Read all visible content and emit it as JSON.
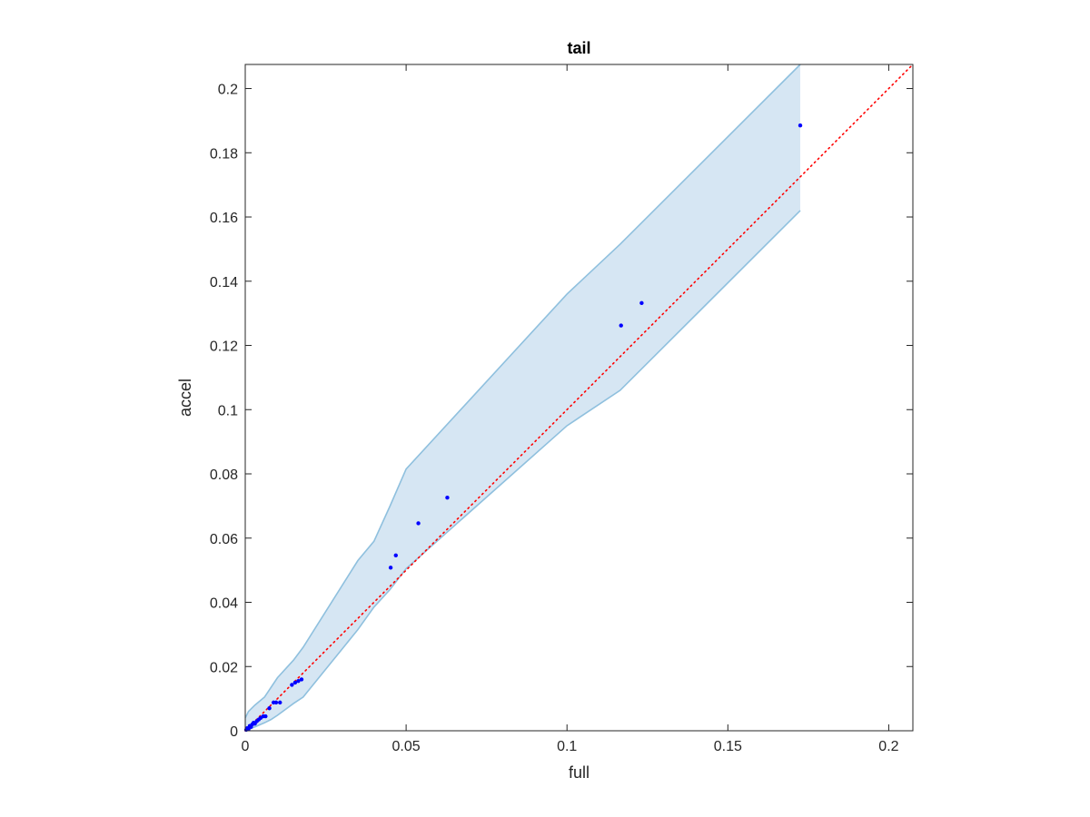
{
  "chart_data": {
    "type": "scatter",
    "title": "tail",
    "xlabel": "full",
    "ylabel": "accel",
    "xlim": [
      0,
      0.2075
    ],
    "ylim": [
      0,
      0.2075
    ],
    "xticks": [
      0,
      0.05,
      0.1,
      0.15,
      0.2
    ],
    "xtick_labels": [
      "0",
      "0.05",
      "0.1",
      "0.15",
      "0.2"
    ],
    "yticks": [
      0,
      0.02,
      0.04,
      0.06,
      0.08,
      0.1,
      0.12,
      0.14,
      0.16,
      0.18,
      0.2
    ],
    "ytick_labels": [
      "0",
      "0.02",
      "0.04",
      "0.06",
      "0.08",
      "0.1",
      "0.12",
      "0.14",
      "0.16",
      "0.18",
      "0.2"
    ],
    "grid": false,
    "series": [
      {
        "kind": "points",
        "color": "#0000ff",
        "x": [
          0.0003,
          0.0006,
          0.001,
          0.0014,
          0.0018,
          0.0022,
          0.0026,
          0.003,
          0.0036,
          0.0042,
          0.0048,
          0.0056,
          0.0063,
          0.0075,
          0.0088,
          0.0096,
          0.0108,
          0.0145,
          0.0155,
          0.0165,
          0.0175,
          0.0452,
          0.0468,
          0.0538,
          0.0628,
          0.1168,
          0.1232,
          0.1725
        ],
        "y": [
          0.0003,
          0.0008,
          0.0005,
          0.0015,
          0.0012,
          0.002,
          0.0025,
          0.0022,
          0.003,
          0.0035,
          0.004,
          0.0045,
          0.0045,
          0.007,
          0.0088,
          0.0088,
          0.0088,
          0.0143,
          0.015,
          0.0155,
          0.016,
          0.0508,
          0.0546,
          0.0646,
          0.0726,
          0.1262,
          0.1332,
          0.1885
        ]
      },
      {
        "kind": "reference-line",
        "style": "dotted",
        "color": "#ff0000",
        "x": [
          0,
          0.2075
        ],
        "y": [
          0,
          0.2075
        ]
      },
      {
        "kind": "band",
        "fill_color": "#d6e6f3",
        "edge_color": "#8fc0de",
        "x": [
          0,
          0.001,
          0.003,
          0.006,
          0.008,
          0.01,
          0.015,
          0.018,
          0.035,
          0.04,
          0.045,
          0.05,
          0.1,
          0.1165,
          0.1725
        ],
        "upper": [
          0.004,
          0.006,
          0.008,
          0.0105,
          0.0135,
          0.0165,
          0.022,
          0.026,
          0.053,
          0.059,
          0.07,
          0.0815,
          0.136,
          0.1515,
          0.2075
        ],
        "lower": [
          0,
          0.0004,
          0.0012,
          0.0025,
          0.0035,
          0.0048,
          0.0085,
          0.0105,
          0.0315,
          0.0385,
          0.044,
          0.0505,
          0.095,
          0.106,
          0.162
        ]
      }
    ]
  }
}
